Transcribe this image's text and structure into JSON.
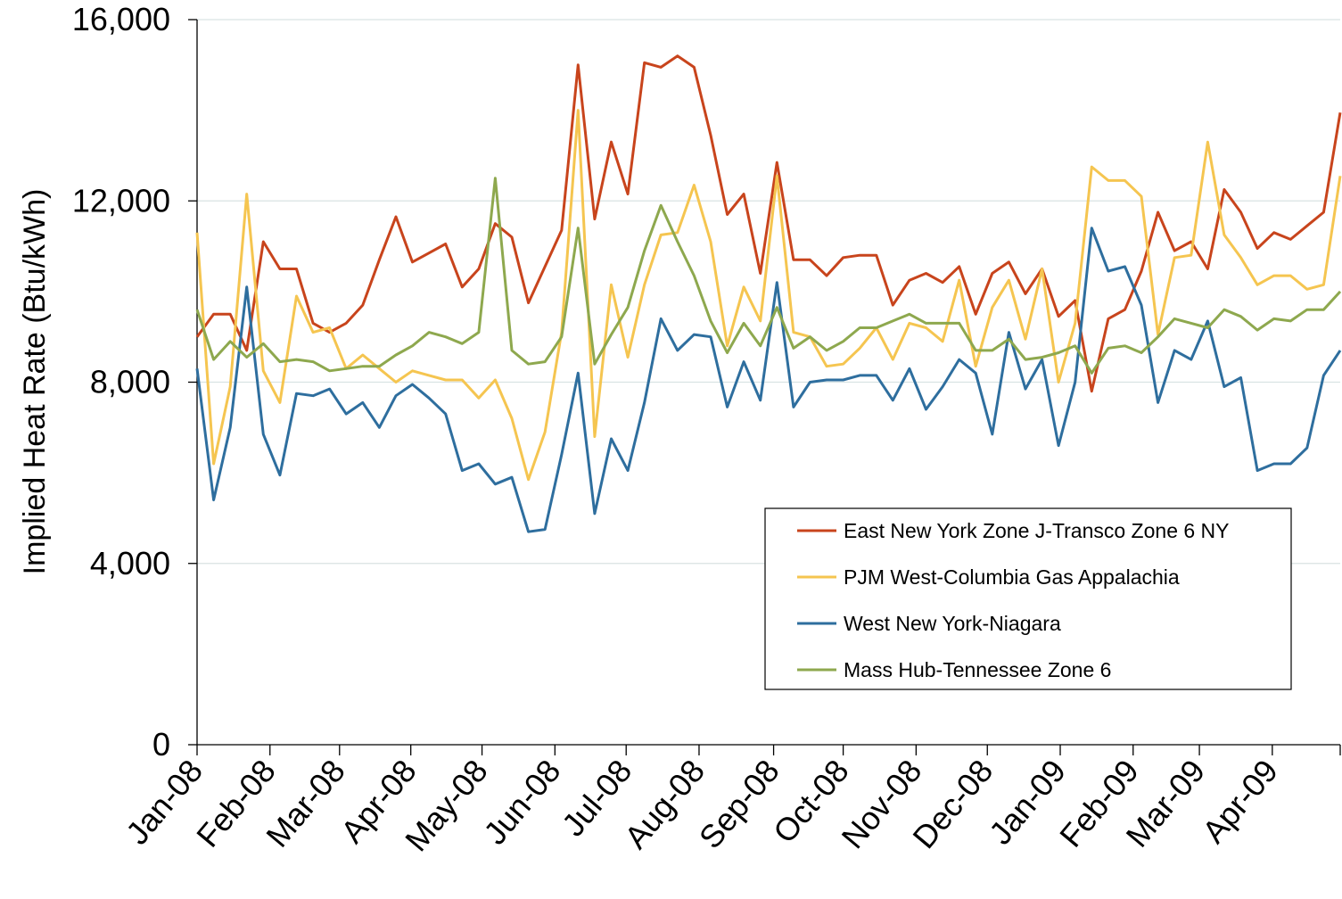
{
  "chart_data": {
    "type": "line",
    "title": "",
    "xlabel": "",
    "ylabel": "Implied Heat Rate (Btu/kWh)",
    "ylim": [
      0,
      16000
    ],
    "yticks": [
      0,
      4000,
      8000,
      12000,
      16000
    ],
    "ytick_labels": [
      "0",
      "4,000",
      "8,000",
      "12,000",
      "16,000"
    ],
    "x_period": "weekly, Jan-08 to late Apr-09",
    "xtick_labels": [
      "Jan-08",
      "Feb-08",
      "Mar-08",
      "Apr-08",
      "May-08",
      "Jun-08",
      "Jul-08",
      "Aug-08",
      "Sep-08",
      "Oct-08",
      "Nov-08",
      "Dec-08",
      "Jan-09",
      "Feb-09",
      "Mar-09",
      "Apr-09"
    ],
    "grid": "horizontal",
    "legend_position": "lower-right",
    "series": [
      {
        "name": "East New York Zone J-Transco Zone 6 NY",
        "color": "#C8441C",
        "values": [
          9000,
          9500,
          9500,
          8700,
          11100,
          10500,
          10500,
          9300,
          9100,
          9300,
          9700,
          10700,
          11650,
          10650,
          10850,
          11050,
          10100,
          10500,
          11500,
          11200,
          9750,
          10550,
          11350,
          15000,
          11600,
          13300,
          12150,
          15050,
          14950,
          15200,
          14950,
          13450,
          11700,
          12150,
          10400,
          12850,
          10700,
          10700,
          10350,
          10750,
          10800,
          10800,
          9700,
          10250,
          10400,
          10200,
          10550,
          9500,
          10400,
          10650,
          9950,
          10500,
          9450,
          9800,
          7800,
          9400,
          9600,
          10450,
          11750,
          10900,
          11100,
          10500,
          12250,
          11750,
          10950,
          11300,
          11150,
          11450,
          11750,
          13950
        ]
      },
      {
        "name": "PJM West-Columbia Gas Appalachia",
        "color": "#F5C550",
        "values": [
          11300,
          6200,
          7900,
          12150,
          8250,
          7550,
          9900,
          9100,
          9200,
          8300,
          8600,
          8300,
          8000,
          8250,
          8150,
          8050,
          8050,
          7650,
          8050,
          7200,
          5850,
          6900,
          9100,
          14000,
          6800,
          10150,
          8550,
          10150,
          11250,
          11300,
          12350,
          11100,
          8800,
          10100,
          9350,
          12550,
          9100,
          9000,
          8350,
          8400,
          8750,
          9200,
          8500,
          9300,
          9200,
          8900,
          10250,
          8350,
          9650,
          10250,
          8950,
          10500,
          8000,
          9300,
          12750,
          12450,
          12450,
          12100,
          9050,
          10750,
          10800,
          13300,
          11250,
          10750,
          10150,
          10350,
          10350,
          10050,
          10150,
          12550
        ]
      },
      {
        "name": "West New York-Niagara",
        "color": "#2E6E9E",
        "values": [
          8300,
          5400,
          7000,
          10100,
          6850,
          5950,
          7750,
          7700,
          7850,
          7300,
          7550,
          7000,
          7700,
          7950,
          7650,
          7300,
          6050,
          6200,
          5750,
          5900,
          4700,
          4750,
          6400,
          8200,
          5100,
          6750,
          6050,
          7550,
          9400,
          8700,
          9050,
          9000,
          7450,
          8450,
          7600,
          10200,
          7450,
          8000,
          8050,
          8050,
          8150,
          8150,
          7600,
          8300,
          7400,
          7900,
          8500,
          8200,
          6850,
          9100,
          7850,
          8500,
          6600,
          8000,
          11400,
          10450,
          10550,
          9700,
          7550,
          8700,
          8500,
          9350,
          7900,
          8100,
          6050,
          6200,
          6200,
          6550,
          8150,
          8700
        ]
      },
      {
        "name": "Mass Hub-Tennessee Zone 6",
        "color": "#8EA84E",
        "values": [
          9600,
          8500,
          8900,
          8550,
          8850,
          8450,
          8500,
          8450,
          8250,
          8300,
          8350,
          8350,
          8600,
          8800,
          9100,
          9000,
          8850,
          9100,
          12500,
          8700,
          8400,
          8450,
          9000,
          11400,
          8400,
          9050,
          9650,
          10900,
          11900,
          11100,
          10350,
          9350,
          8650,
          9300,
          8800,
          9650,
          8750,
          9000,
          8700,
          8900,
          9200,
          9200,
          9350,
          9500,
          9300,
          9300,
          9300,
          8700,
          8700,
          8950,
          8500,
          8550,
          8650,
          8800,
          8200,
          8750,
          8800,
          8650,
          9000,
          9400,
          9300,
          9200,
          9600,
          9450,
          9150,
          9400,
          9350,
          9600,
          9600,
          10000
        ]
      }
    ]
  }
}
